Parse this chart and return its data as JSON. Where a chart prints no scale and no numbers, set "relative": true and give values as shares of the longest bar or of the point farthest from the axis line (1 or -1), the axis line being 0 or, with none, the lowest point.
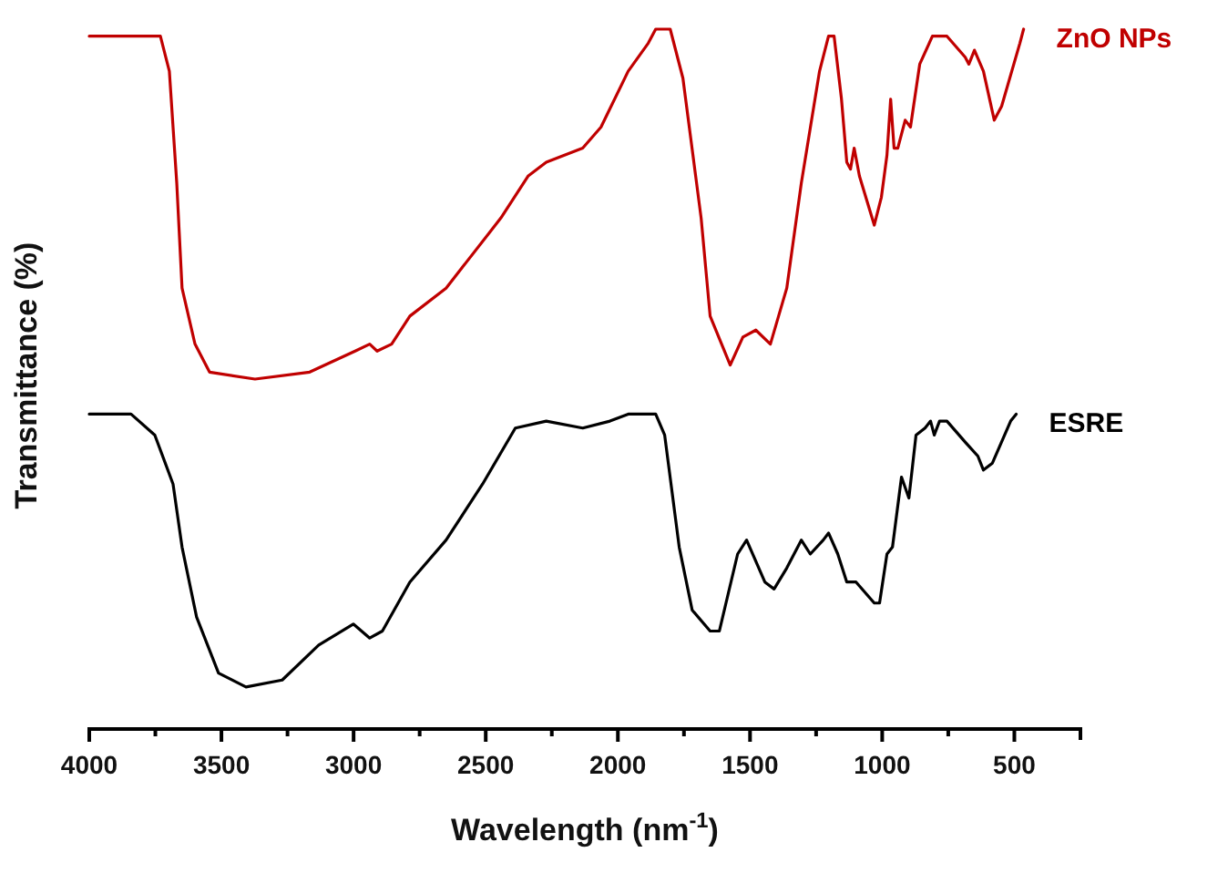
{
  "chart_data": {
    "type": "line",
    "relative": true,
    "xlabel": "Wavelength (nm$^{-1}$)",
    "ylabel": "Transmittance (%)",
    "tick_labels": "x",
    "line_style": "solid",
    "xlim": [
      4000,
      250
    ],
    "xticks": [
      4000,
      {
        "value": 3750,
        "label": null
      },
      3500,
      {
        "value": 3250,
        "label": null
      },
      3000,
      {
        "value": 2750,
        "label": null
      },
      2500,
      {
        "value": 2250,
        "label": null
      },
      2000,
      {
        "value": 1750,
        "label": null
      },
      1500,
      {
        "value": 1250,
        "label": null
      },
      1000,
      {
        "value": 750,
        "label": null
      },
      500,
      {
        "value": 250,
        "label": null
      }
    ],
    "series": [
      {
        "name": "ZnO NPs",
        "color": "#c00000",
        "x": [
          4000,
          3731,
          3697,
          3669,
          3649,
          3600,
          3545,
          3373,
          3166,
          2994,
          2939,
          2911,
          2856,
          2787,
          2650,
          2443,
          2340,
          2271,
          2133,
          2064,
          1961,
          1885,
          1857,
          1802,
          1754,
          1685,
          1651,
          1575,
          1527,
          1478,
          1423,
          1361,
          1306,
          1237,
          1203,
          1182,
          1154,
          1134,
          1120,
          1106,
          1086,
          1030,
          1003,
          982,
          968,
          955,
          941,
          913,
          893,
          858,
          810,
          755,
          686,
          672,
          651,
          617,
          576,
          548,
          479,
          465
        ],
        "values": [
          0.99,
          0.99,
          0.94,
          0.78,
          0.63,
          0.55,
          0.51,
          0.5,
          0.51,
          0.54,
          0.55,
          0.54,
          0.55,
          0.59,
          0.63,
          0.73,
          0.79,
          0.81,
          0.83,
          0.86,
          0.94,
          0.98,
          1.0,
          1.0,
          0.93,
          0.73,
          0.59,
          0.52,
          0.56,
          0.57,
          0.55,
          0.63,
          0.78,
          0.94,
          0.99,
          0.99,
          0.9,
          0.81,
          0.8,
          0.83,
          0.79,
          0.72,
          0.76,
          0.82,
          0.9,
          0.83,
          0.83,
          0.87,
          0.86,
          0.95,
          0.99,
          0.99,
          0.96,
          0.95,
          0.97,
          0.94,
          0.87,
          0.89,
          0.98,
          1.0
        ]
      },
      {
        "name": "ESRE",
        "color": "#000000",
        "x": [
          4000,
          3842,
          3752,
          3683,
          3649,
          3594,
          3511,
          3407,
          3270,
          3132,
          3001,
          2939,
          2891,
          2787,
          2650,
          2512,
          2388,
          2271,
          2133,
          2030,
          1961,
          1857,
          1823,
          1768,
          1719,
          1651,
          1616,
          1547,
          1513,
          1444,
          1409,
          1361,
          1306,
          1272,
          1223,
          1203,
          1168,
          1134,
          1099,
          1030,
          1010,
          982,
          961,
          927,
          899,
          872,
          838,
          817,
          803,
          783,
          755,
          686,
          638,
          617,
          583,
          514,
          493
        ],
        "values": [
          0.45,
          0.45,
          0.42,
          0.35,
          0.26,
          0.16,
          0.08,
          0.06,
          0.07,
          0.12,
          0.15,
          0.13,
          0.14,
          0.21,
          0.27,
          0.35,
          0.43,
          0.44,
          0.43,
          0.44,
          0.45,
          0.45,
          0.42,
          0.26,
          0.17,
          0.14,
          0.14,
          0.25,
          0.27,
          0.21,
          0.2,
          0.23,
          0.27,
          0.25,
          0.27,
          0.28,
          0.25,
          0.21,
          0.21,
          0.18,
          0.18,
          0.25,
          0.26,
          0.36,
          0.33,
          0.42,
          0.43,
          0.44,
          0.42,
          0.44,
          0.44,
          0.41,
          0.39,
          0.37,
          0.38,
          0.44,
          0.45
        ]
      }
    ]
  }
}
